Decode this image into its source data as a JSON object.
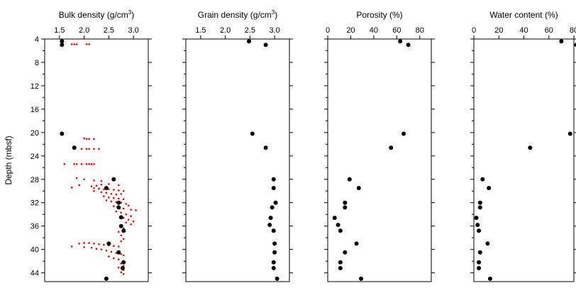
{
  "chart_data": [
    {
      "type": "scatter",
      "title": "Bulk density (g/cm",
      "title_sup": "3",
      "title_end": ")",
      "ylabel": "Depth (mbsf)",
      "xlim": [
        1.2,
        3.3
      ],
      "ylim": [
        4,
        45.5
      ],
      "x_ticks": [
        1.5,
        2.0,
        2.5,
        3.0
      ],
      "x_tick_labels": [
        "1.5",
        "2.0",
        "2.5",
        "3.0"
      ],
      "y_ticks": [
        4,
        8,
        12,
        16,
        20,
        24,
        28,
        32,
        36,
        40,
        44
      ],
      "y_tick_labels": [
        "4",
        "8",
        "12",
        "16",
        "20",
        "24",
        "28",
        "32",
        "36",
        "40",
        "44"
      ],
      "series": [
        {
          "marker_color": "#000000",
          "points": [
            [
              1.55,
              4.4
            ],
            [
              1.55,
              5.0
            ],
            [
              1.55,
              20.2
            ],
            [
              1.8,
              22.6
            ],
            [
              2.6,
              28.0
            ],
            [
              2.45,
              29.5
            ],
            [
              2.7,
              32.0
            ],
            [
              2.7,
              32.8
            ],
            [
              2.75,
              34.5
            ],
            [
              2.75,
              36.0
            ],
            [
              2.8,
              36.8
            ],
            [
              2.5,
              39.0
            ],
            [
              2.7,
              40.5
            ],
            [
              2.8,
              42.2
            ],
            [
              2.78,
              43.2
            ],
            [
              2.45,
              45.0
            ]
          ]
        },
        {
          "marker_color": "#e00000",
          "points": [
            [
              1.75,
              4.9
            ],
            [
              1.8,
              4.9
            ],
            [
              1.85,
              4.9
            ],
            [
              2.05,
              4.9
            ],
            [
              2.1,
              4.9
            ],
            [
              2.0,
              21.0
            ],
            [
              2.05,
              21.1
            ],
            [
              2.1,
              21.1
            ],
            [
              2.2,
              21.1
            ],
            [
              1.95,
              22.8
            ],
            [
              2.05,
              22.8
            ],
            [
              2.1,
              22.8
            ],
            [
              2.2,
              22.8
            ],
            [
              2.3,
              22.8
            ],
            [
              1.6,
              25.4
            ],
            [
              1.8,
              25.4
            ],
            [
              1.85,
              25.4
            ],
            [
              1.95,
              25.4
            ],
            [
              2.05,
              25.4
            ],
            [
              2.1,
              25.4
            ],
            [
              2.15,
              25.4
            ],
            [
              2.2,
              25.4
            ],
            [
              1.85,
              27.8
            ],
            [
              2.0,
              28.0
            ],
            [
              2.2,
              28.2
            ],
            [
              2.35,
              28.3
            ],
            [
              1.9,
              29.0
            ],
            [
              1.75,
              29.4
            ],
            [
              2.15,
              29.2
            ],
            [
              2.25,
              29.1
            ],
            [
              2.35,
              28.9
            ],
            [
              2.5,
              28.8
            ],
            [
              2.7,
              29.0
            ],
            [
              2.2,
              29.5
            ],
            [
              2.3,
              29.6
            ],
            [
              2.4,
              29.7
            ],
            [
              2.5,
              29.7
            ],
            [
              2.6,
              29.8
            ],
            [
              2.7,
              29.9
            ],
            [
              2.8,
              30.0
            ],
            [
              2.2,
              30.0
            ],
            [
              2.35,
              30.2
            ],
            [
              2.45,
              30.3
            ],
            [
              2.55,
              30.5
            ],
            [
              2.65,
              30.6
            ],
            [
              2.75,
              30.5
            ],
            [
              2.4,
              30.9
            ],
            [
              2.5,
              31.1
            ],
            [
              2.6,
              31.2
            ],
            [
              2.7,
              31.3
            ],
            [
              2.8,
              31.4
            ],
            [
              2.45,
              31.6
            ],
            [
              2.55,
              31.8
            ],
            [
              2.65,
              31.9
            ],
            [
              2.75,
              32.0
            ],
            [
              2.85,
              32.2
            ],
            [
              2.9,
              32.5
            ],
            [
              2.6,
              32.6
            ],
            [
              2.7,
              32.8
            ],
            [
              2.8,
              33.0
            ],
            [
              2.95,
              33.2
            ],
            [
              3.05,
              33.3
            ],
            [
              2.65,
              33.5
            ],
            [
              2.75,
              33.7
            ],
            [
              2.85,
              34.0
            ],
            [
              2.95,
              34.3
            ],
            [
              2.8,
              34.6
            ],
            [
              2.9,
              34.9
            ],
            [
              3.0,
              35.2
            ],
            [
              2.85,
              35.4
            ],
            [
              2.95,
              35.7
            ],
            [
              2.75,
              36.0
            ],
            [
              2.8,
              36.4
            ],
            [
              2.7,
              37.0
            ],
            [
              2.75,
              37.6
            ],
            [
              2.8,
              38.2
            ],
            [
              2.75,
              38.6
            ],
            [
              1.9,
              39.0
            ],
            [
              2.0,
              38.9
            ],
            [
              2.1,
              38.9
            ],
            [
              2.2,
              39.0
            ],
            [
              2.3,
              39.1
            ],
            [
              2.4,
              39.2
            ],
            [
              2.5,
              39.3
            ],
            [
              2.6,
              39.4
            ],
            [
              2.7,
              39.5
            ],
            [
              1.75,
              39.5
            ],
            [
              2.0,
              39.6
            ],
            [
              2.15,
              39.7
            ],
            [
              2.25,
              39.9
            ],
            [
              2.35,
              40.0
            ],
            [
              2.45,
              40.2
            ],
            [
              2.55,
              40.4
            ],
            [
              2.65,
              40.6
            ],
            [
              2.75,
              40.8
            ],
            [
              2.8,
              41.0
            ],
            [
              2.5,
              41.2
            ],
            [
              2.6,
              41.5
            ],
            [
              2.7,
              41.7
            ],
            [
              2.8,
              42.0
            ],
            [
              2.75,
              42.4
            ],
            [
              2.8,
              42.8
            ],
            [
              2.7,
              43.1
            ],
            [
              2.8,
              43.5
            ],
            [
              2.75,
              43.9
            ],
            [
              2.8,
              44.2
            ]
          ]
        }
      ]
    },
    {
      "type": "scatter",
      "title": "Grain density (g/cm",
      "title_sup": "3",
      "title_end": ")",
      "xlim": [
        1.2,
        3.3
      ],
      "ylim": [
        4,
        45.5
      ],
      "x_ticks": [
        1.5,
        2.0,
        2.5,
        3.0
      ],
      "x_tick_labels": [
        "1.5",
        "2.0",
        "2.5",
        "3.0"
      ],
      "y_ticks": [
        4,
        8,
        12,
        16,
        20,
        24,
        28,
        32,
        36,
        40,
        44
      ],
      "series": [
        {
          "marker_color": "#000000",
          "points": [
            [
              2.48,
              4.4
            ],
            [
              2.82,
              5.0
            ],
            [
              2.55,
              20.2
            ],
            [
              2.82,
              22.6
            ],
            [
              2.98,
              28.0
            ],
            [
              2.98,
              29.5
            ],
            [
              3.02,
              32.0
            ],
            [
              2.95,
              32.8
            ],
            [
              2.92,
              34.6
            ],
            [
              2.9,
              35.8
            ],
            [
              2.98,
              36.8
            ],
            [
              3.0,
              39.0
            ],
            [
              3.0,
              40.5
            ],
            [
              2.98,
              42.2
            ],
            [
              2.98,
              43.2
            ],
            [
              3.05,
              45.0
            ]
          ]
        }
      ]
    },
    {
      "type": "scatter",
      "title": "Porosity (%)",
      "xlim": [
        0,
        90
      ],
      "ylim": [
        4,
        45.5
      ],
      "x_ticks": [
        0,
        20,
        40,
        60,
        80
      ],
      "x_tick_labels": [
        "0",
        "20",
        "40",
        "60",
        "80"
      ],
      "y_ticks": [
        4,
        8,
        12,
        16,
        20,
        24,
        28,
        32,
        36,
        40,
        44
      ],
      "series": [
        {
          "marker_color": "#000000",
          "points": [
            [
              63,
              4.4
            ],
            [
              70,
              5.0
            ],
            [
              66,
              20.2
            ],
            [
              55,
              22.6
            ],
            [
              19,
              28.0
            ],
            [
              27,
              29.5
            ],
            [
              15,
              32.0
            ],
            [
              15,
              32.8
            ],
            [
              6,
              34.6
            ],
            [
              9,
              35.8
            ],
            [
              11,
              36.8
            ],
            [
              25,
              39.0
            ],
            [
              15,
              40.5
            ],
            [
              11,
              42.2
            ],
            [
              11,
              43.2
            ],
            [
              29,
              45.0
            ]
          ]
        }
      ]
    },
    {
      "type": "scatter",
      "title": "Water content (%)",
      "xlim": [
        0,
        80
      ],
      "ylim": [
        4,
        45.5
      ],
      "x_ticks": [
        0,
        20,
        40,
        60,
        80
      ],
      "x_tick_labels": [
        "0",
        "20",
        "40",
        "60",
        "80"
      ],
      "y_ticks": [
        4,
        8,
        12,
        16,
        20,
        24,
        28,
        32,
        36,
        40,
        44
      ],
      "series": [
        {
          "marker_color": "#000000",
          "points": [
            [
              70,
              4.4
            ],
            [
              82,
              5.0
            ],
            [
              77,
              20.2
            ],
            [
              45,
              22.6
            ],
            [
              7,
              28.0
            ],
            [
              12,
              29.5
            ],
            [
              5,
              32.0
            ],
            [
              5,
              32.8
            ],
            [
              2,
              34.6
            ],
            [
              3,
              35.8
            ],
            [
              4,
              36.8
            ],
            [
              11,
              39.0
            ],
            [
              5,
              40.5
            ],
            [
              4,
              42.2
            ],
            [
              4,
              43.2
            ],
            [
              13,
              45.0
            ]
          ]
        }
      ]
    }
  ]
}
